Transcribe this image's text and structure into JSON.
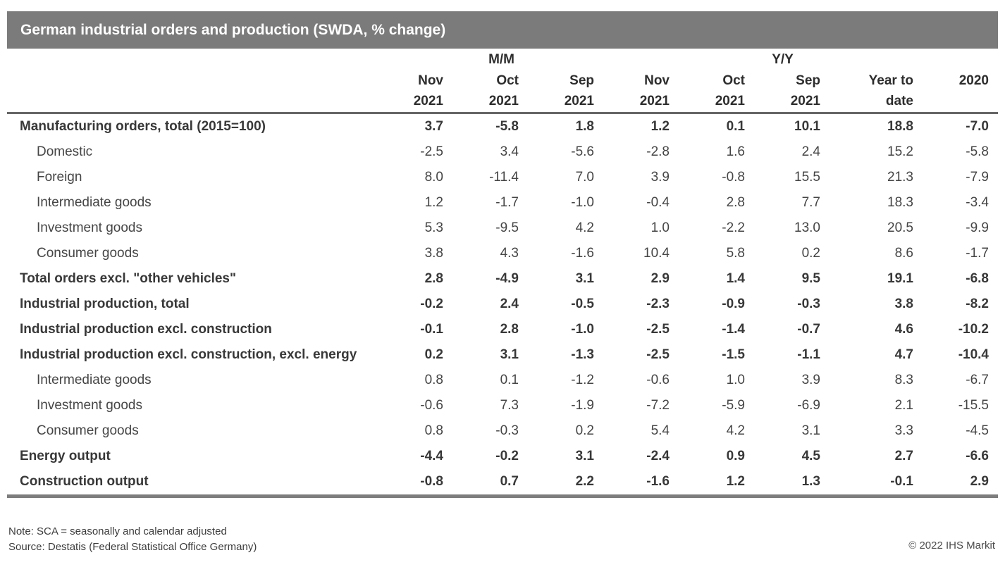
{
  "title_bar": {
    "title": "German industrial orders and production (SWDA, % change)"
  },
  "chart_data": {
    "type": "table",
    "title": "German industrial orders and production (SWDA, % change)",
    "column_groups": [
      {
        "label": "M/M",
        "over_column": 2
      },
      {
        "label": "Y/Y",
        "over_column": 6
      }
    ],
    "columns": [
      {
        "line1": "Nov",
        "line2": "2021"
      },
      {
        "line1": "Oct",
        "line2": "2021"
      },
      {
        "line1": "Sep",
        "line2": "2021"
      },
      {
        "line1": "Nov",
        "line2": "2021"
      },
      {
        "line1": "Oct",
        "line2": "2021"
      },
      {
        "line1": "Sep",
        "line2": "2021"
      },
      {
        "line1": "Year to",
        "line2": "date"
      },
      {
        "line1": "2020",
        "line2": ""
      }
    ],
    "rows": [
      {
        "label": "Manufacturing orders, total (2015=100)",
        "bold": true,
        "indent": false,
        "values": [
          3.7,
          -5.8,
          1.8,
          1.2,
          0.1,
          10.1,
          18.8,
          -7.0
        ]
      },
      {
        "label": "Domestic",
        "bold": false,
        "indent": true,
        "values": [
          -2.5,
          3.4,
          -5.6,
          -2.8,
          1.6,
          2.4,
          15.2,
          -5.8
        ]
      },
      {
        "label": "Foreign",
        "bold": false,
        "indent": true,
        "values": [
          8.0,
          -11.4,
          7.0,
          3.9,
          -0.8,
          15.5,
          21.3,
          -7.9
        ]
      },
      {
        "label": "Intermediate goods",
        "bold": false,
        "indent": true,
        "values": [
          1.2,
          -1.7,
          -1.0,
          -0.4,
          2.8,
          7.7,
          18.3,
          -3.4
        ]
      },
      {
        "label": "Investment goods",
        "bold": false,
        "indent": true,
        "values": [
          5.3,
          -9.5,
          4.2,
          1.0,
          -2.2,
          13.0,
          20.5,
          -9.9
        ]
      },
      {
        "label": "Consumer goods",
        "bold": false,
        "indent": true,
        "values": [
          3.8,
          4.3,
          -1.6,
          10.4,
          5.8,
          0.2,
          8.6,
          -1.7
        ]
      },
      {
        "label": "Total orders excl. \"other vehicles\"",
        "bold": true,
        "indent": false,
        "values": [
          2.8,
          -4.9,
          3.1,
          2.9,
          1.4,
          9.5,
          19.1,
          -6.8
        ]
      },
      {
        "label": "Industrial production, total",
        "bold": true,
        "indent": false,
        "values": [
          -0.2,
          2.4,
          -0.5,
          -2.3,
          -0.9,
          -0.3,
          3.8,
          -8.2
        ]
      },
      {
        "label": "Industrial production excl. construction",
        "bold": true,
        "indent": false,
        "values": [
          -0.1,
          2.8,
          -1.0,
          -2.5,
          -1.4,
          -0.7,
          4.6,
          -10.2
        ]
      },
      {
        "label": "Industrial production excl. construction, excl. energy",
        "bold": true,
        "indent": false,
        "values": [
          0.2,
          3.1,
          -1.3,
          -2.5,
          -1.5,
          -1.1,
          4.7,
          -10.4
        ]
      },
      {
        "label": "Intermediate goods",
        "bold": false,
        "indent": true,
        "values": [
          0.8,
          0.1,
          -1.2,
          -0.6,
          1.0,
          3.9,
          8.3,
          -6.7
        ]
      },
      {
        "label": "Investment goods",
        "bold": false,
        "indent": true,
        "values": [
          -0.6,
          7.3,
          -1.9,
          -7.2,
          -5.9,
          -6.9,
          2.1,
          -15.5
        ]
      },
      {
        "label": "Consumer goods",
        "bold": false,
        "indent": true,
        "values": [
          0.8,
          -0.3,
          0.2,
          5.4,
          4.2,
          3.1,
          3.3,
          -4.5
        ]
      },
      {
        "label": "Energy output",
        "bold": true,
        "indent": false,
        "values": [
          -4.4,
          -0.2,
          3.1,
          -2.4,
          0.9,
          4.5,
          2.7,
          -6.6
        ]
      },
      {
        "label": "Construction output",
        "bold": true,
        "indent": false,
        "values": [
          -0.8,
          0.7,
          2.2,
          -1.6,
          1.2,
          1.3,
          -0.1,
          2.9
        ]
      }
    ]
  },
  "footer": {
    "note": "Note: SCA = seasonally and calendar adjusted",
    "source": "Source: Destatis (Federal Statistical Office Germany)",
    "copyright": "© 2022 IHS Markit"
  },
  "colors": {
    "title_bar_bg": "#7b7b7b",
    "title_text": "#ffffff",
    "header_rule": "#666666",
    "bottom_rule": "#7d7d7d",
    "bold_text": "#383838",
    "regular_text": "#454545"
  }
}
